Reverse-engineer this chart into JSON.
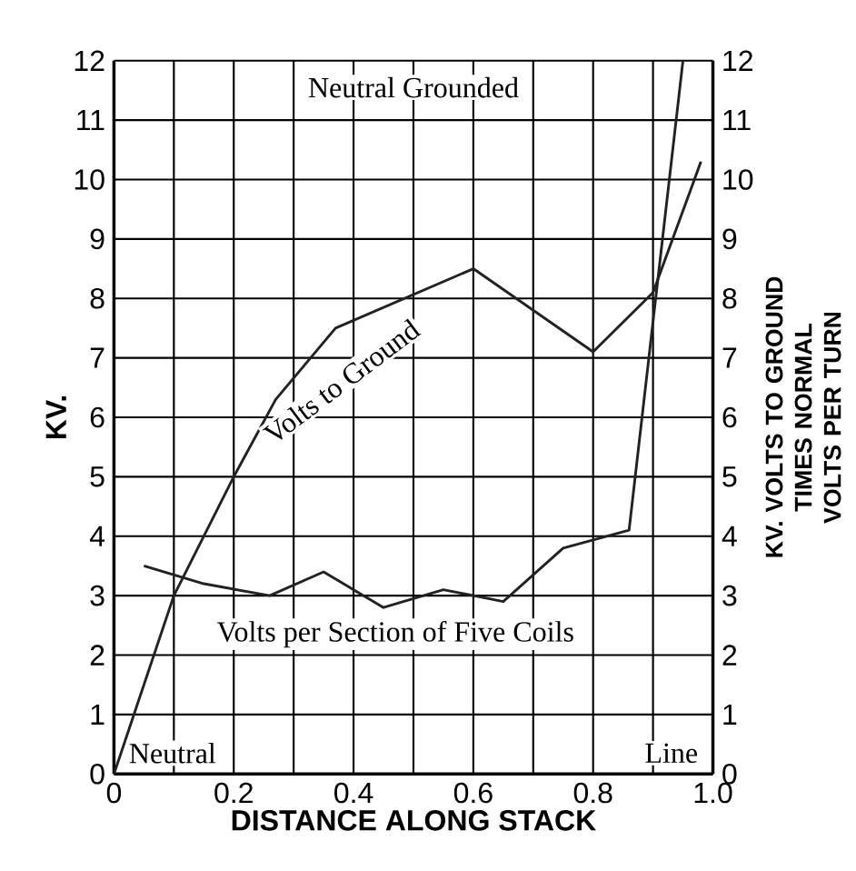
{
  "chart_data": {
    "type": "line",
    "xlabel": "DISTANCE ALONG STACK",
    "ylabel": "KV.",
    "y2label": "KV. VOLTS TO GROUND TIMES NORMAL VOLTS PER TURN",
    "annotations": [
      "Neutral Grounded",
      "Neutral",
      "Line"
    ],
    "series": [
      {
        "name": "Volts to Ground",
        "color": "#222222",
        "x": [
          0,
          0.1,
          0.2,
          0.27,
          0.37,
          0.6,
          0.8,
          0.9,
          0.98
        ],
        "values": [
          0,
          3.0,
          5.0,
          6.3,
          7.5,
          8.5,
          7.1,
          8.1,
          10.3
        ]
      },
      {
        "name": "Volts per Section of Five Coils",
        "color": "#222222",
        "axis": "y2",
        "x": [
          0.05,
          0.15,
          0.26,
          0.35,
          0.45,
          0.55,
          0.65,
          0.75,
          0.86,
          0.95
        ],
        "values": [
          3.5,
          3.2,
          3.0,
          3.4,
          2.8,
          3.1,
          2.9,
          3.8,
          4.1,
          12.0
        ]
      }
    ],
    "xlim": [
      0,
      1.0
    ],
    "ylim": [
      0,
      12
    ],
    "y2lim": [
      0,
      12
    ],
    "xticks": [
      0,
      {
        "value": 0.1,
        "label": null
      },
      0.2,
      {
        "value": 0.3,
        "label": null
      },
      0.4,
      {
        "value": 0.5,
        "label": null
      },
      0.6,
      {
        "value": 0.7,
        "label": null
      },
      0.8,
      {
        "value": 0.9,
        "label": null
      },
      {
        "value": 1.0,
        "label": "1.0"
      }
    ],
    "yticks": [
      0,
      1,
      2,
      3,
      4,
      5,
      6,
      7,
      8,
      9,
      10,
      11,
      12
    ],
    "y2ticks": [
      0,
      1,
      2,
      3,
      4,
      5,
      6,
      7,
      8,
      9,
      10,
      11,
      12
    ],
    "grid": true,
    "legend": false,
    "marker": "none",
    "line_style": "solid"
  }
}
